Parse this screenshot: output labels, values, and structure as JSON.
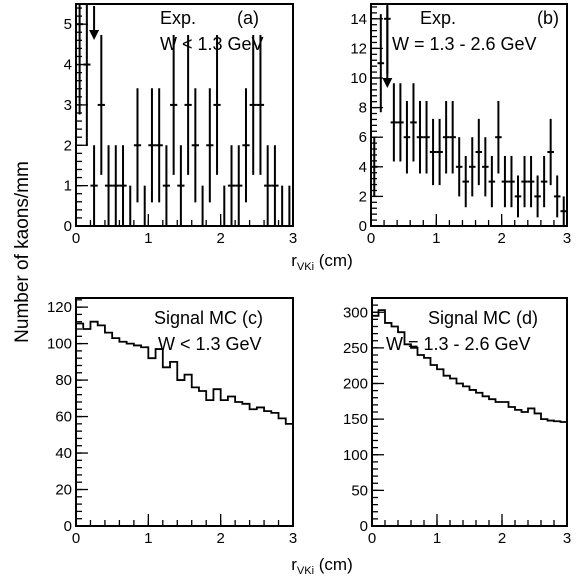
{
  "figure": {
    "ylabel": "Number of kaons/mm",
    "xlabel_main": "r",
    "xlabel_sub": "VKi",
    "xlabel_unit": " (cm)"
  },
  "chart_data": [
    {
      "id": "a",
      "type": "histogram",
      "style": "errorbars",
      "annotation": [
        "Exp.",
        "W < 1.3 GeV"
      ],
      "panel_label": "(a)",
      "xlim": [
        0,
        3
      ],
      "ylim": [
        0,
        5.5
      ],
      "xticks": [
        0,
        1,
        2,
        3
      ],
      "yticks": [
        0,
        1,
        2,
        3,
        4,
        5
      ],
      "arrow_x": 0.25,
      "x": [
        0.05,
        0.15,
        0.25,
        0.35,
        0.45,
        0.55,
        0.65,
        0.75,
        0.85,
        0.95,
        1.05,
        1.15,
        1.25,
        1.35,
        1.45,
        1.55,
        1.65,
        1.75,
        1.85,
        1.95,
        2.05,
        2.15,
        2.25,
        2.35,
        2.45,
        2.55,
        2.65,
        2.75,
        2.85,
        2.95
      ],
      "values": [
        5,
        4,
        1,
        3,
        1,
        1,
        1,
        0,
        2,
        0,
        2,
        2,
        1,
        3,
        1,
        3,
        2,
        0,
        2,
        3,
        0,
        1,
        1,
        2,
        3,
        3,
        1,
        1,
        0,
        0
      ]
    },
    {
      "id": "b",
      "type": "histogram",
      "style": "errorbars",
      "annotation": [
        "Exp.",
        "W = 1.3 - 2.6 GeV"
      ],
      "panel_label": "(b)",
      "xlim": [
        0,
        3
      ],
      "ylim": [
        0,
        15
      ],
      "xticks": [
        0,
        1,
        2,
        3
      ],
      "yticks": [
        0,
        2,
        4,
        6,
        8,
        10,
        12,
        14
      ],
      "arrow_x": 0.25,
      "x": [
        0.05,
        0.15,
        0.25,
        0.35,
        0.45,
        0.55,
        0.65,
        0.75,
        0.85,
        0.95,
        1.05,
        1.15,
        1.25,
        1.35,
        1.45,
        1.55,
        1.65,
        1.75,
        1.85,
        1.95,
        2.05,
        2.15,
        2.25,
        2.35,
        2.45,
        2.55,
        2.65,
        2.75,
        2.85,
        2.95
      ],
      "values": [
        4,
        11,
        14,
        7,
        7,
        6,
        7,
        6,
        6,
        5,
        5,
        6,
        6,
        4,
        3,
        4,
        5,
        4,
        3,
        6,
        3,
        3,
        2,
        3,
        3,
        2,
        3,
        5,
        2,
        1
      ]
    },
    {
      "id": "c",
      "type": "histogram",
      "style": "step",
      "annotation": [
        "Signal MC (c)",
        "W < 1.3 GeV"
      ],
      "xlim": [
        0,
        3
      ],
      "ylim": [
        0,
        125
      ],
      "xticks": [
        0,
        1,
        2,
        3
      ],
      "yticks": [
        0,
        20,
        40,
        60,
        80,
        100,
        120
      ],
      "x": [
        0.05,
        0.15,
        0.25,
        0.35,
        0.45,
        0.55,
        0.65,
        0.75,
        0.85,
        0.95,
        1.05,
        1.15,
        1.25,
        1.35,
        1.45,
        1.55,
        1.65,
        1.75,
        1.85,
        1.95,
        2.05,
        2.15,
        2.25,
        2.35,
        2.45,
        2.55,
        2.65,
        2.75,
        2.85,
        2.95
      ],
      "values": [
        111,
        108,
        112,
        110,
        106,
        103,
        101,
        100,
        99,
        98,
        92,
        97,
        87,
        90,
        80,
        83,
        76,
        74,
        69,
        75,
        69,
        71,
        68,
        67,
        64,
        65,
        63,
        62,
        59,
        56
      ]
    },
    {
      "id": "d",
      "type": "histogram",
      "style": "step",
      "annotation": [
        "Signal MC (d)",
        "W = 1.3 - 2.6 GeV"
      ],
      "xlim": [
        0,
        3
      ],
      "ylim": [
        0,
        320
      ],
      "xticks": [
        0,
        1,
        2,
        3
      ],
      "yticks": [
        0,
        50,
        100,
        150,
        200,
        250,
        300
      ],
      "x": [
        0.05,
        0.15,
        0.25,
        0.35,
        0.45,
        0.55,
        0.65,
        0.75,
        0.85,
        0.95,
        1.05,
        1.15,
        1.25,
        1.35,
        1.45,
        1.55,
        1.65,
        1.75,
        1.85,
        1.95,
        2.05,
        2.15,
        2.25,
        2.35,
        2.45,
        2.55,
        2.65,
        2.75,
        2.85,
        2.95
      ],
      "values": [
        295,
        303,
        285,
        280,
        272,
        255,
        250,
        240,
        236,
        226,
        220,
        211,
        207,
        200,
        196,
        191,
        187,
        182,
        178,
        174,
        174,
        167,
        163,
        160,
        165,
        158,
        150,
        148,
        147,
        146
      ]
    }
  ]
}
